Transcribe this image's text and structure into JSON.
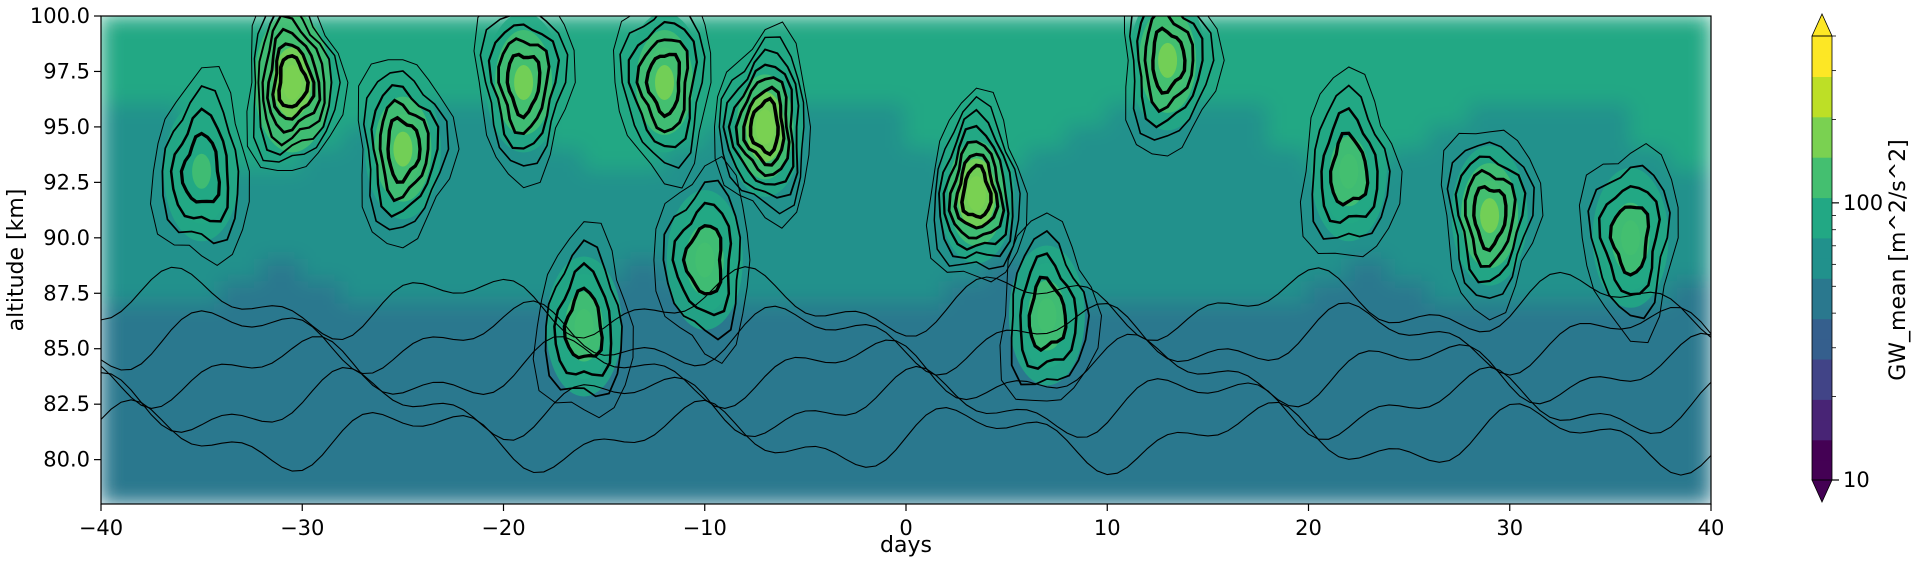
{
  "chart_data": {
    "type": "heatmap",
    "title": "",
    "xlabel": "days",
    "ylabel": "altitude [km]",
    "xlim": [
      -40,
      40
    ],
    "ylim": [
      78,
      100
    ],
    "x_ticks": [
      -40,
      -30,
      -20,
      -10,
      0,
      10,
      20,
      30,
      40
    ],
    "x_tick_labels": [
      "−40",
      "−30",
      "−20",
      "−10",
      "0",
      "10",
      "20",
      "30",
      "40"
    ],
    "y_ticks": [
      80,
      82.5,
      85,
      87.5,
      90,
      92.5,
      95,
      97.5,
      100
    ],
    "y_tick_labels": [
      "80.0",
      "82.5",
      "85.0",
      "87.5",
      "90.0",
      "92.5",
      "95.0",
      "97.5",
      "100.0"
    ],
    "colorbar": {
      "label": "GW_mean [m^2/s^2]",
      "scale": "log",
      "colormap": "viridis",
      "range": [
        10,
        400
      ],
      "ticks": [
        10,
        100
      ],
      "tick_labels": [
        "10",
        "100"
      ],
      "extend": "both",
      "colors": [
        "#440154",
        "#482475",
        "#414487",
        "#355f8d",
        "#2a788e",
        "#21918c",
        "#22a884",
        "#44bf70",
        "#7ad151",
        "#bddf26",
        "#fde725"
      ]
    },
    "field_description": "filled contours of GW_mean with overlaid black line contours (thicker lines for higher values)",
    "hotspots": [
      {
        "day": 3.5,
        "alt": 92,
        "value": 230
      },
      {
        "day": -30.5,
        "alt": 97,
        "value": 210
      },
      {
        "day": -25,
        "alt": 94,
        "value": 170
      },
      {
        "day": -19,
        "alt": 97,
        "value": 180
      },
      {
        "day": -12,
        "alt": 97,
        "value": 180
      },
      {
        "day": -7,
        "alt": 95,
        "value": 190
      },
      {
        "day": -16,
        "alt": 86,
        "value": 150
      },
      {
        "day": 7,
        "alt": 86.5,
        "value": 150
      },
      {
        "day": 13,
        "alt": 98,
        "value": 170
      },
      {
        "day": 29,
        "alt": 91,
        "value": 160
      },
      {
        "day": 36,
        "alt": 90,
        "value": 140
      },
      {
        "day": -10,
        "alt": 89,
        "value": 140
      },
      {
        "day": -35,
        "alt": 93,
        "value": 120
      },
      {
        "day": 22,
        "alt": 93,
        "value": 130
      }
    ]
  }
}
